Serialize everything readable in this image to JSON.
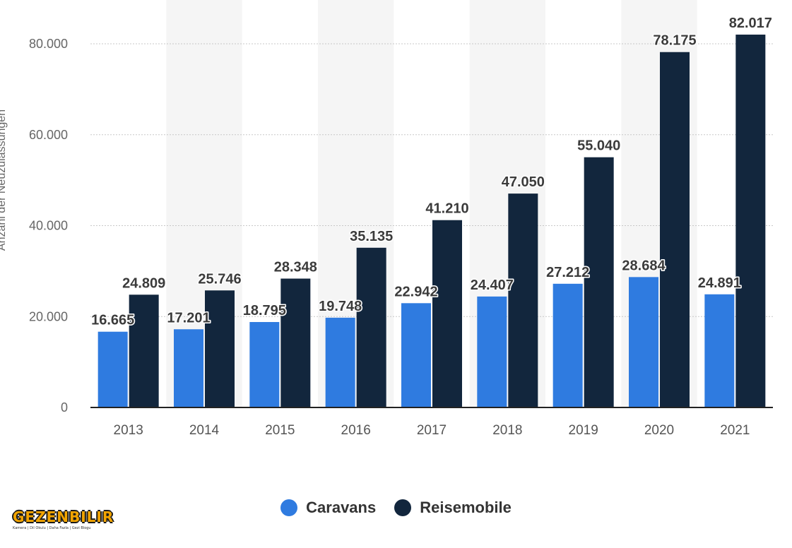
{
  "chart_data": {
    "type": "bar",
    "title": "",
    "xlabel": "",
    "ylabel": "Anzahl der Neuzulassungen",
    "ylim": [
      0,
      85000
    ],
    "yticks": [
      0,
      20000,
      40000,
      60000,
      80000
    ],
    "ytick_labels": [
      "0",
      "20.000",
      "40.000",
      "60.000",
      "80.000"
    ],
    "categories": [
      "2013",
      "2014",
      "2015",
      "2016",
      "2017",
      "2018",
      "2019",
      "2020",
      "2021"
    ],
    "series": [
      {
        "name": "Caravans",
        "color": "#2f7be0",
        "values": [
          16665,
          17201,
          18795,
          19748,
          22942,
          24407,
          27212,
          28684,
          24891
        ],
        "labels": [
          "16.665",
          "17.201",
          "18.795",
          "19.748",
          "22.942",
          "24.407",
          "27.212",
          "28.684",
          "24.891"
        ]
      },
      {
        "name": "Reisemobile",
        "color": "#12263d",
        "values": [
          24809,
          25746,
          28348,
          35135,
          41210,
          47050,
          55040,
          78175,
          82017
        ],
        "labels": [
          "24.809",
          "25.746",
          "28.348",
          "35.135",
          "41.210",
          "47.050",
          "55.040",
          "78.175",
          "82.017"
        ]
      }
    ],
    "grid": true,
    "legend_position": "bottom-center"
  },
  "legend": {
    "items": [
      {
        "label": "Caravans",
        "color": "#2f7be0"
      },
      {
        "label": "Reisemobile",
        "color": "#12263d"
      }
    ]
  },
  "watermark": {
    "brand": "GEZENBILIR",
    "tagline": "Kamera | Dil Okulu | Daha Fazla | Gezi Blogu"
  }
}
